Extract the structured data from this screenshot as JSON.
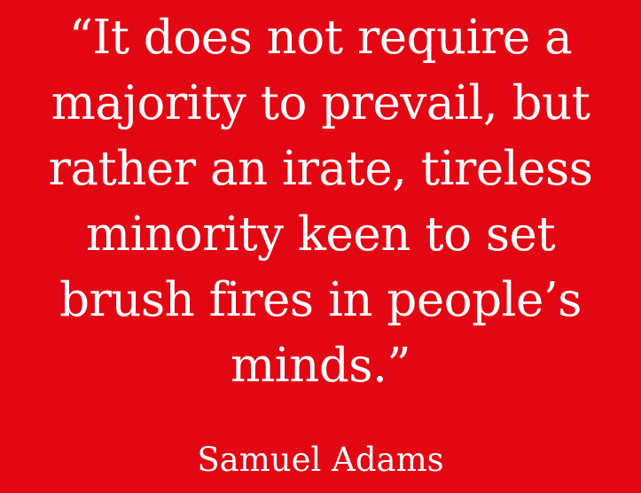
{
  "quote": {
    "lines": [
      "“It does not require a",
      "majority to prevail, but",
      "rather an irate, tireless",
      "minority keen to set",
      "brush fires in people’s",
      "minds.”"
    ]
  },
  "attribution": "Samuel Adams",
  "colors": {
    "background": "#e30613",
    "text": "#ffffff"
  }
}
